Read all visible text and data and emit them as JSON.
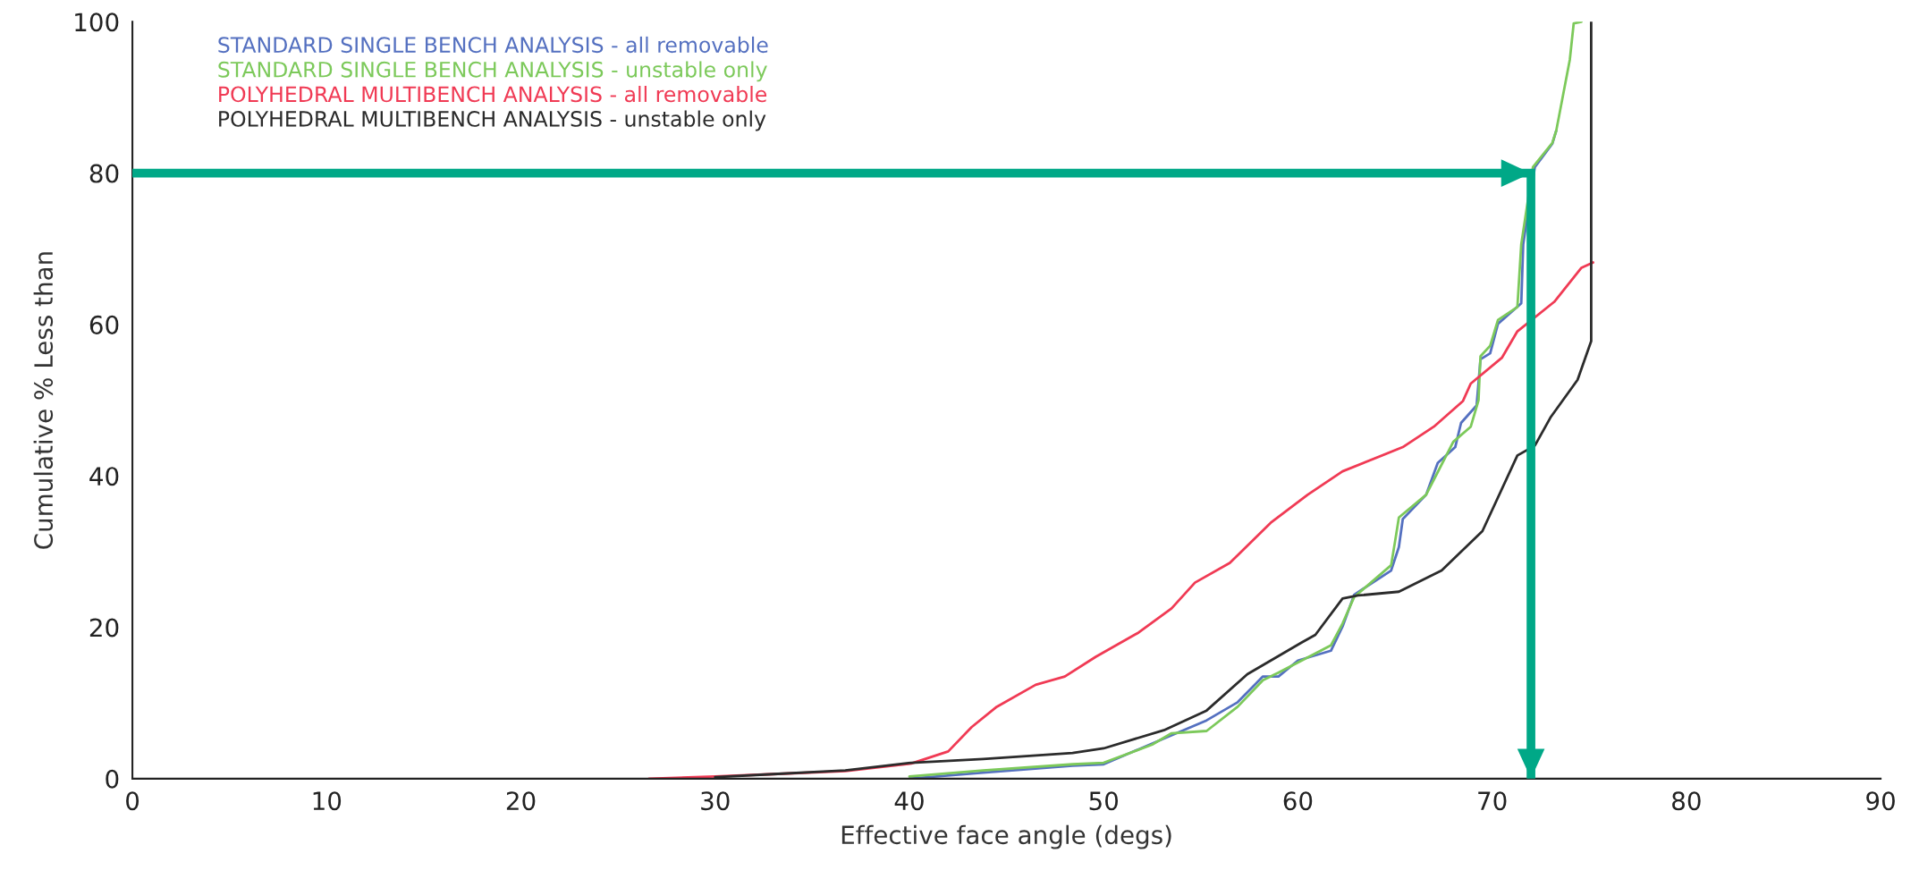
{
  "chart_data": {
    "type": "line",
    "xlabel": "Effective face angle (degs)",
    "ylabel": "Cumulative % Less than",
    "xlim": [
      0,
      90
    ],
    "xticks": [
      0,
      10,
      20,
      30,
      40,
      50,
      60,
      70,
      80,
      90
    ],
    "ylim": [
      0,
      100
    ],
    "yticks": [
      0,
      20,
      40,
      60,
      80,
      100
    ],
    "grid": false,
    "legend": "top left",
    "marker": "none",
    "line_style": "solid",
    "series": [
      {
        "name": "STANDARD SINGLE BENCH ANALYSIS - all removable",
        "color": "#5470c0",
        "x": [
          40,
          43.8,
          48.4,
          50,
          53.1,
          55.3,
          56.9,
          58.2,
          59.0,
          60.0,
          61.7,
          62.3,
          62.9,
          64.8,
          65.2,
          65.4,
          66.6,
          67.2,
          68.1,
          68.4,
          69.2,
          69.4,
          69.9,
          70.3,
          71.5,
          71.6,
          72.2,
          73.1,
          73.3
        ],
        "values": [
          0,
          0.8,
          1.7,
          1.9,
          5.3,
          7.7,
          10.1,
          13.5,
          13.5,
          15.6,
          16.9,
          20.1,
          24.3,
          27.5,
          30.6,
          34.3,
          37.5,
          41.7,
          43.8,
          47.0,
          49.3,
          55.4,
          56.2,
          60.1,
          62.8,
          70.6,
          80.8,
          83.9,
          85.6
        ]
      },
      {
        "name": "STANDARD SINGLE BENCH ANALYSIS - unstable only",
        "color": "#7cc95a",
        "x": [
          40,
          43.8,
          48.4,
          50,
          52.5,
          53.5,
          55.3,
          56.9,
          58.2,
          59.0,
          61.7,
          62.3,
          62.9,
          64.8,
          65.0,
          65.2,
          66.6,
          67.2,
          68.0,
          68.9,
          69.3,
          69.4,
          69.9,
          70.3,
          71.3,
          71.5,
          72.1,
          73.1,
          73.3,
          74.0,
          74.2,
          74.6
        ],
        "values": [
          0.3,
          1.1,
          1.9,
          2.1,
          4.5,
          6.0,
          6.3,
          9.5,
          13.0,
          14.0,
          17.6,
          20.5,
          24.0,
          28.2,
          31.3,
          34.5,
          37.5,
          40.5,
          44.5,
          46.5,
          50,
          55.8,
          57.2,
          60.6,
          62.3,
          70.6,
          80.8,
          84,
          85.6,
          95,
          99.8,
          100
        ]
      },
      {
        "name": "POLYHEDRAL MULTIBENCH ANALYSIS - all removable",
        "color": "#f03a54",
        "x": [
          26.6,
          30,
          33,
          36.7,
          40.1,
          42,
          43.2,
          44.5,
          46.5,
          48,
          49.6,
          51.8,
          53.5,
          54.7,
          56.5,
          58.6,
          60.5,
          62.3,
          65.4,
          67,
          68.5,
          68.9,
          70.5,
          71.3,
          73.2,
          74.6,
          75.2
        ],
        "values": [
          0,
          0.3,
          0.6,
          1.0,
          2.0,
          3.6,
          6.8,
          9.5,
          12.4,
          13.5,
          16.1,
          19.3,
          22.5,
          25.9,
          28.5,
          33.8,
          37.5,
          40.6,
          43.8,
          46.5,
          49.9,
          52.2,
          55.6,
          59.1,
          63.0,
          67.5,
          68.2
        ]
      },
      {
        "name": "POLYHEDRAL MULTIBENCH ANALYSIS - unstable only",
        "color": "#2b2b2b",
        "x": [
          30,
          33,
          36.7,
          40.1,
          43.8,
          48.4,
          50,
          53.1,
          55.3,
          57.4,
          60.2,
          60.9,
          62.3,
          63.1,
          65.2,
          67.4,
          69.5,
          71.3,
          72.2,
          73.0,
          74.4,
          75.1,
          75.1
        ],
        "values": [
          0.2,
          0.6,
          1.1,
          2.1,
          2.6,
          3.4,
          4.0,
          6.4,
          9.0,
          13.8,
          18.0,
          19.0,
          23.8,
          24.2,
          24.7,
          27.5,
          32.7,
          42.7,
          44.0,
          47.7,
          52.7,
          57.8,
          100
        ]
      },
      {
        "type": "line",
        "color": "#00a887",
        "x": [
          0,
          72,
          72
        ],
        "values": [
          80,
          80,
          0
        ]
      }
    ]
  }
}
